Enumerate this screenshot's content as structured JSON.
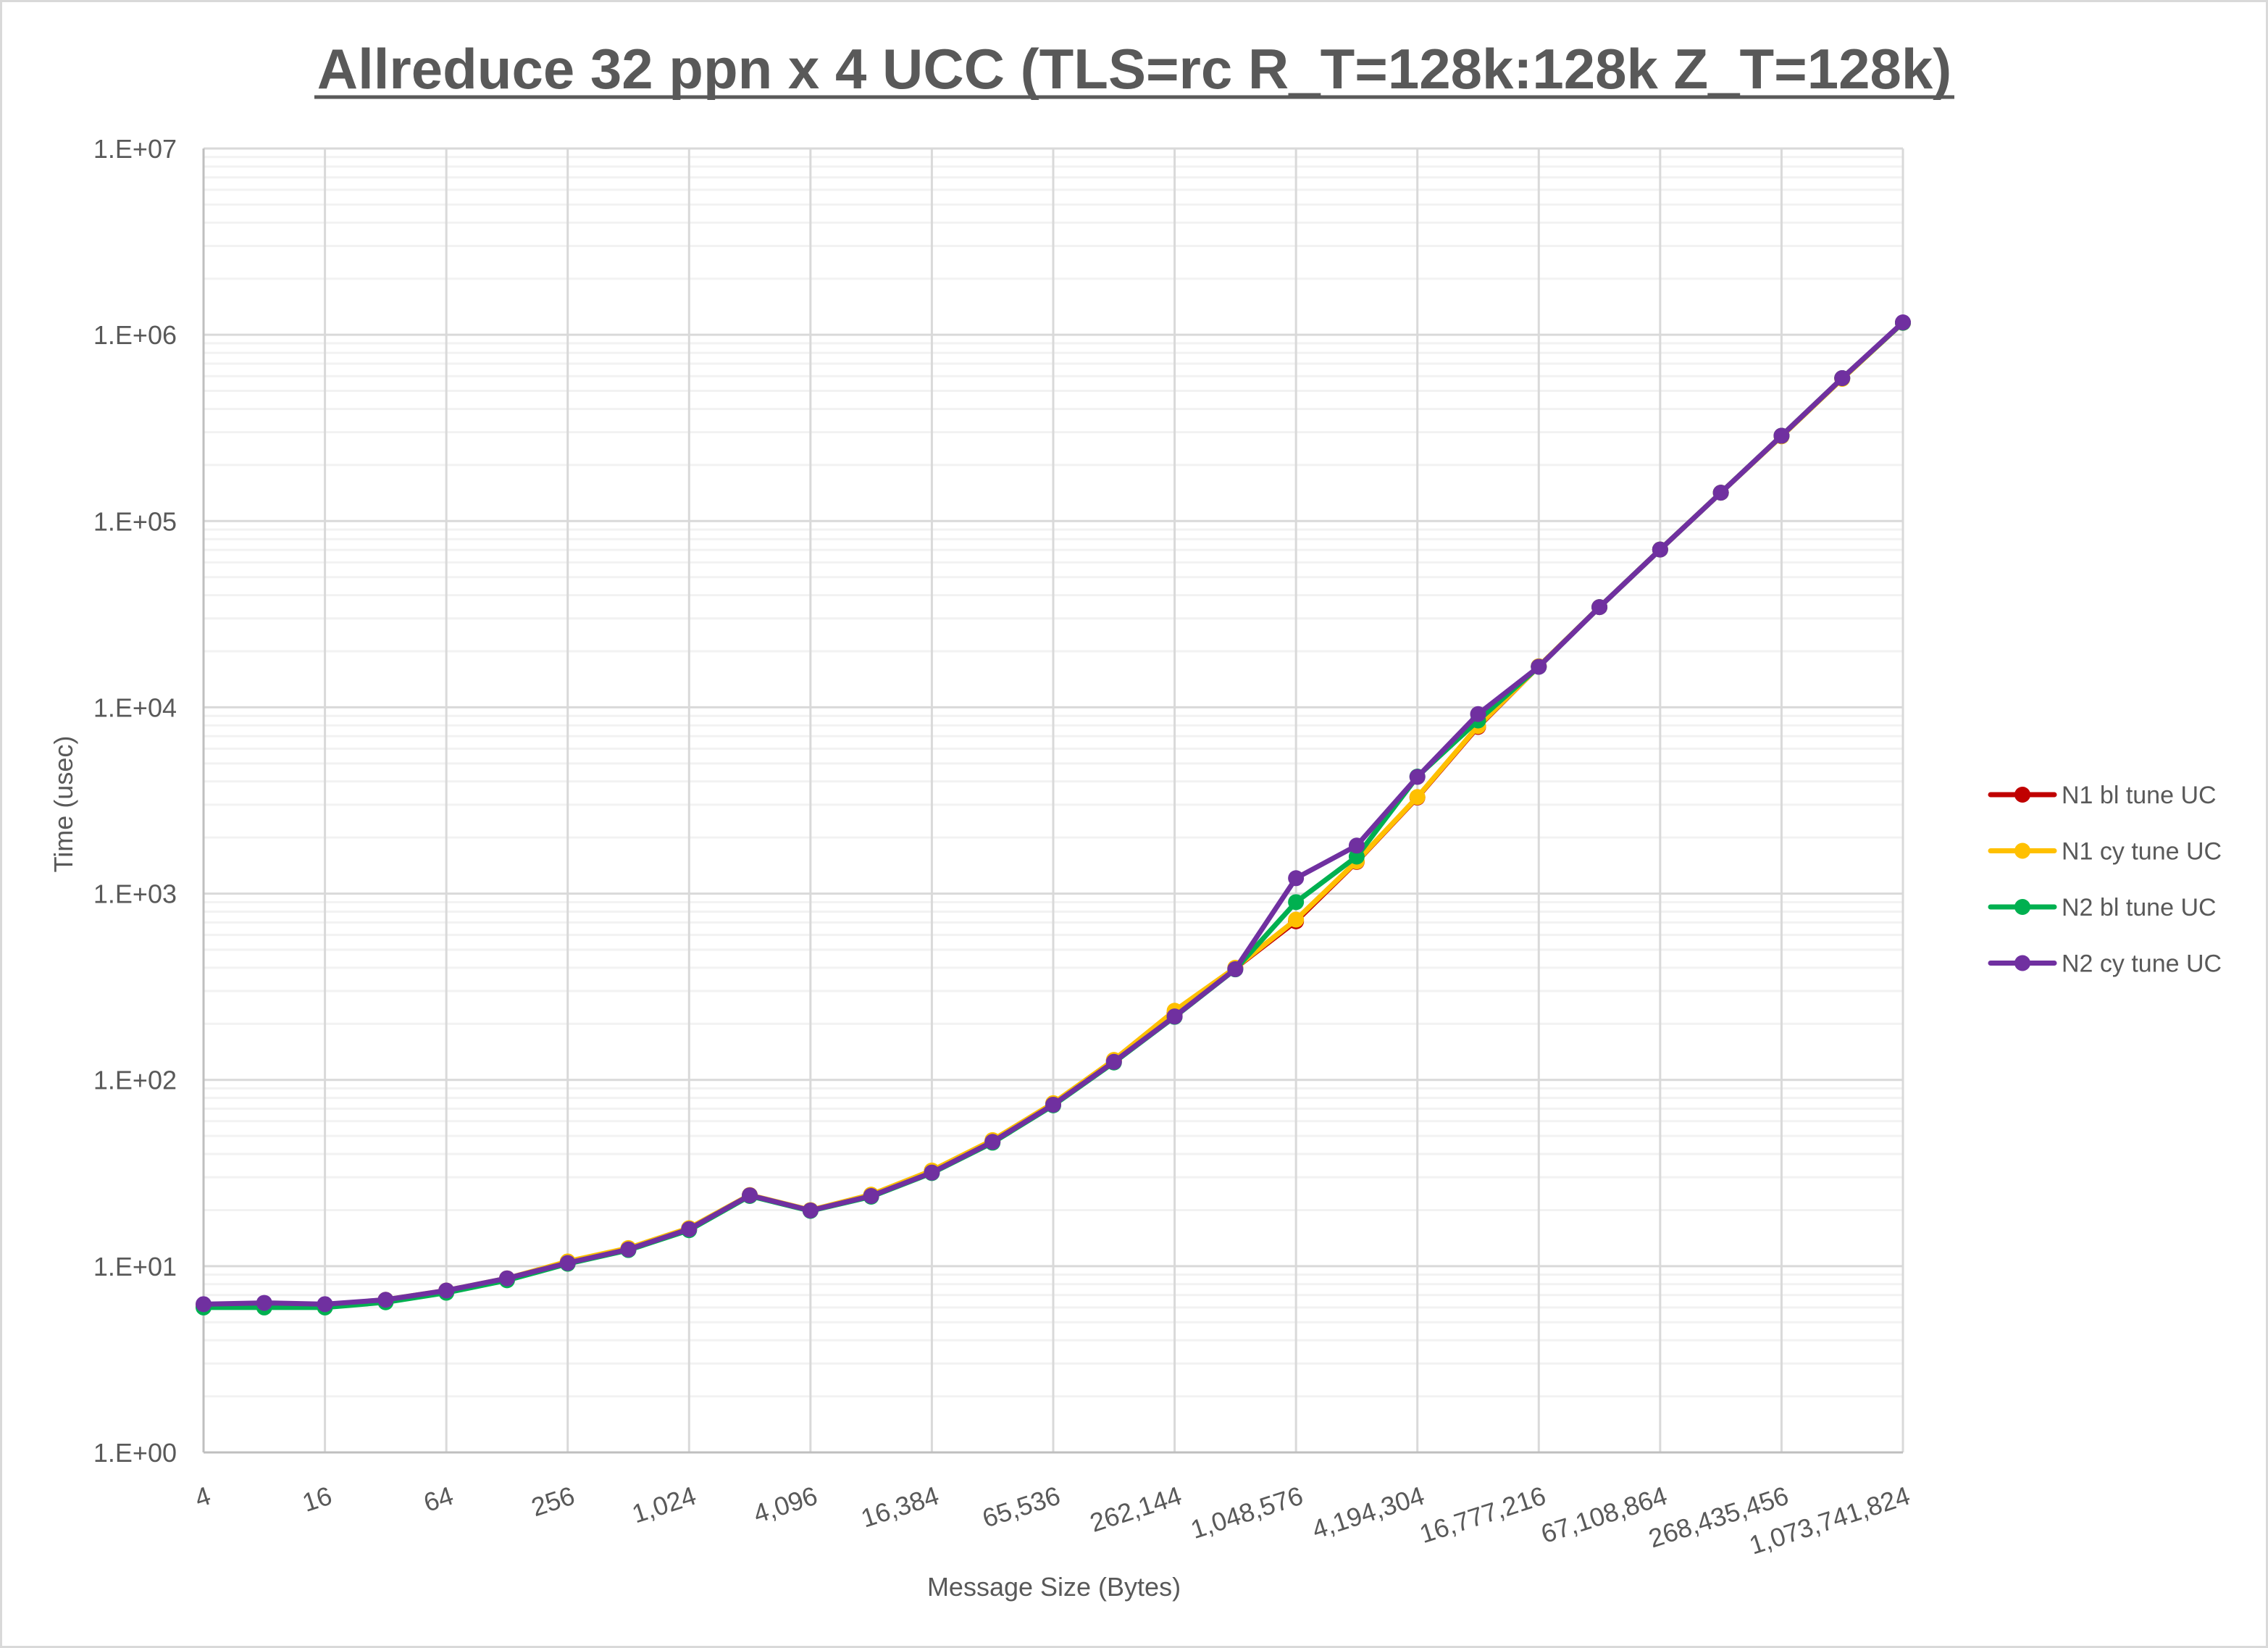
{
  "chart_data": {
    "type": "line",
    "title": "Allreduce 32 ppn x 4 UCC (TLS=rc R_T=128k:128k Z_T=128k)",
    "xlabel": "Message Size (Bytes)",
    "ylabel": "Time (usec)",
    "x_scale": "log2",
    "y_scale": "log10",
    "ylim": [
      1,
      10000000
    ],
    "grid": {
      "major_y": true,
      "minor_y": true,
      "major_x": true
    },
    "legend_position": "right",
    "x_tick_labels": [
      "4",
      "16",
      "64",
      "256",
      "1,024",
      "4,096",
      "16,384",
      "65,536",
      "262,144",
      "1,048,576",
      "4,194,304",
      "16,777,216",
      "67,108,864",
      "268,435,456",
      "1,073,741,824"
    ],
    "y_tick_labels": [
      "1.E+00",
      "1.E+01",
      "1.E+02",
      "1.E+03",
      "1.E+04",
      "1.E+05",
      "1.E+06",
      "1.E+07"
    ],
    "x": [
      4,
      8,
      16,
      32,
      64,
      128,
      256,
      512,
      1024,
      2048,
      4096,
      8192,
      16384,
      32768,
      65536,
      131072,
      262144,
      524288,
      1048576,
      2097152,
      4194304,
      8388608,
      16777216,
      33554432,
      67108864,
      134217728,
      268435456,
      536870912,
      1073741824
    ],
    "series": [
      {
        "name": "N1 bl tune UC",
        "color": "#C00000",
        "values": [
          6.1,
          6.1,
          6.1,
          6.5,
          7.3,
          8.5,
          10.5,
          12.4,
          15.9,
          24.0,
          19.9,
          24.0,
          32.3,
          47.0,
          74.5,
          127,
          228,
          398,
          710,
          1480,
          3280,
          7850,
          16600,
          34500,
          70300,
          142000,
          287000,
          585000,
          1160000
        ]
      },
      {
        "name": "N1 cy tune UC",
        "color": "#FFC000",
        "values": [
          6.2,
          6.3,
          6.2,
          6.6,
          7.4,
          8.6,
          10.6,
          12.5,
          16.0,
          24.1,
          20.0,
          24.2,
          32.6,
          47.5,
          75.0,
          128,
          235,
          400,
          725,
          1490,
          3300,
          7930,
          16600,
          34500,
          70300,
          142000,
          285000,
          580000,
          1160000
        ]
      },
      {
        "name": "N2 bl tune UC",
        "color": "#00B050",
        "values": [
          6.0,
          6.0,
          6.0,
          6.4,
          7.2,
          8.4,
          10.3,
          12.2,
          15.6,
          23.8,
          19.8,
          23.6,
          31.6,
          46.0,
          73.0,
          124,
          218,
          392,
          900,
          1580,
          4250,
          8500,
          16500,
          34500,
          70300,
          142000,
          287000,
          585000,
          1160000
        ]
      },
      {
        "name": "N2 cy tune UC",
        "color": "#7030A0",
        "values": [
          6.25,
          6.35,
          6.25,
          6.6,
          7.4,
          8.6,
          10.4,
          12.3,
          15.8,
          24.0,
          19.9,
          23.8,
          31.8,
          46.5,
          73.6,
          125,
          219,
          393,
          1210,
          1810,
          4230,
          9200,
          16500,
          34500,
          70300,
          142000,
          287000,
          585000,
          1166000
        ]
      }
    ]
  },
  "page": {
    "title": "Allreduce 32 ppn x 4 UCC (TLS=rc R_T=128k:128k Z_T=128k)",
    "x_axis_title": "Message Size (Bytes)",
    "y_axis_title": "Time (usec)"
  },
  "style": {
    "text_color": "#595959",
    "major_grid_color": "#D9D9D9",
    "minor_grid_color": "#F2F2F2",
    "border_color": "#D9D9D9"
  }
}
